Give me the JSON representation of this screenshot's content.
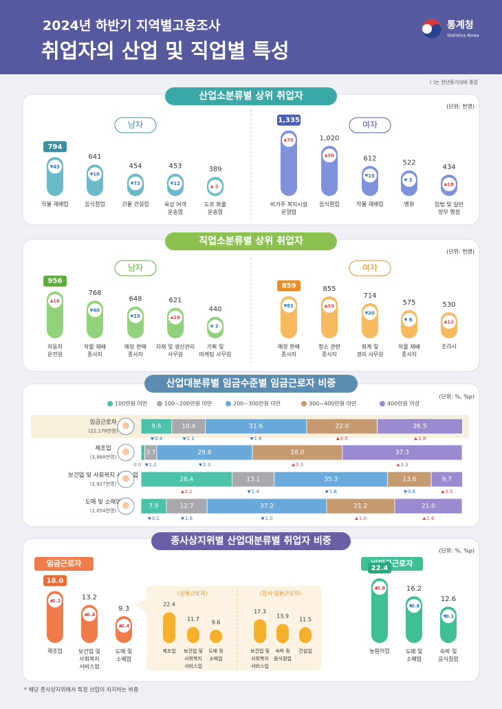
{
  "header": {
    "subtitle": "2024년 하반기 지역별고용조사",
    "title": "취업자의 산업 및 직업별 특성",
    "logo": "통계청",
    "logo_en": "Statistics Korea",
    "note": "( )는 전년동기대비 증감"
  },
  "chart_data": [
    {
      "type": "pill-bar",
      "title": "산업소분류별 상위 취업자",
      "unit": "(단위: 천명)",
      "ylim": [
        0,
        1400
      ],
      "series": [
        {
          "name": "남자",
          "color": "#6cb9c9",
          "badge_color": "#3e8ea3",
          "categories": [
            "작물 재배업",
            "음식점업",
            "건물 건설업",
            "육상 여객\n운송업",
            "도로 화물\n운송업"
          ],
          "values": [
            794,
            641,
            454,
            453,
            389
          ],
          "change": [
            45,
            10,
            73,
            12,
            2
          ],
          "change_direction": [
            "down",
            "down",
            "down",
            "down",
            "up"
          ]
        },
        {
          "name": "여자",
          "color": "#8091dc",
          "badge_color": "#4b5dba",
          "categories": [
            "비거주 복지시설\n운영업",
            "음식점업",
            "작물 재배업",
            "병원",
            "입법 및 일반\n정부 행정"
          ],
          "values": [
            1335,
            1020,
            612,
            522,
            434
          ],
          "value_labels": [
            "1,335",
            "1,020",
            "612",
            "522",
            "434"
          ],
          "change": [
            70,
            30,
            15,
            3,
            18
          ],
          "change_direction": [
            "up",
            "up",
            "down",
            "down",
            "up"
          ]
        }
      ]
    },
    {
      "type": "pill-bar",
      "title": "직업소분류별 상위 취업자",
      "unit": "(단위: 천명)",
      "ylim": [
        0,
        1400
      ],
      "series": [
        {
          "name": "남자",
          "color": "#92d27c",
          "badge_color": "#5fae3c",
          "categories": [
            "자동차\n운전원",
            "작물 재배\n종사자",
            "매장 판매\n종사자",
            "자재 및 생산관리\n사무원",
            "기획 및\n마케팅 사무원"
          ],
          "values": [
            956,
            768,
            648,
            621,
            440
          ],
          "change": [
            16,
            40,
            19,
            18,
            7
          ],
          "change_direction": [
            "up",
            "down",
            "down",
            "up",
            "down"
          ]
        },
        {
          "name": "여자",
          "color": "#f6b95e",
          "badge_color": "#e68d25",
          "categories": [
            "매장 판매\n종사자",
            "청소 관련\n종사자",
            "회계 및\n경리 사무원",
            "작물 재배\n종사자",
            "조리사"
          ],
          "values": [
            859,
            855,
            714,
            575,
            530
          ],
          "change": [
            81,
            39,
            20,
            8,
            12
          ],
          "change_direction": [
            "down",
            "up",
            "down",
            "down",
            "up"
          ]
        }
      ]
    },
    {
      "type": "stacked-bar-h",
      "title": "산업대분류별 임금수준별 임금근로자 비중",
      "unit": "(단위: %, %p)",
      "xlim": [
        0,
        100
      ],
      "categories": [
        "임금근로자",
        "제조업",
        "보건업 및 사회복지 서비스업",
        "도매 및 소매업"
      ],
      "category_notes": [
        "(22,178천명)",
        "(3,988천명)",
        "(2,927천명)",
        "(2,054천명)"
      ],
      "series": [
        {
          "name": "100만원 미만",
          "color": "#4cc3a8",
          "values": [
            9.6,
            1.2,
            28.4,
            7.9
          ],
          "change": [
            0.4,
            0.0,
            2.1,
            0.1
          ],
          "change_labels": [
            "0.4",
            "0.0",
            "2.1",
            "0.1"
          ],
          "change_direction": [
            "down",
            "none",
            "up",
            "down"
          ]
        },
        {
          "name": "100~200만원 미만",
          "color": "#a7a9ad",
          "values": [
            10.4,
            3.7,
            13.1,
            12.7
          ],
          "change": [
            1.1,
            1.2,
            1.4,
            1.6
          ],
          "change_direction": [
            "down",
            "down",
            "down",
            "down"
          ]
        },
        {
          "name": "200~300만원 미만",
          "color": "#6aa9db",
          "values": [
            31.6,
            29.8,
            35.3,
            37.2
          ],
          "change": [
            1.6,
            2.3,
            1.8,
            1.0
          ],
          "change_labels": [
            "1.6",
            "2.3",
            "1.8",
            "1.0"
          ],
          "change_direction": [
            "down",
            "down",
            "down",
            "down"
          ]
        },
        {
          "name": "300~400만원 미만",
          "color": "#c59a70",
          "values": [
            22.0,
            28.0,
            13.6,
            21.2
          ],
          "value_labels": [
            "22.0",
            "28.0",
            "13.6",
            "21.2"
          ],
          "change": [
            0.5,
            0.3,
            0.8,
            1.0
          ],
          "change_labels": [
            "0.5",
            "0.3",
            "0.8",
            "1.0"
          ],
          "change_direction": [
            "up",
            "up",
            "down",
            "up"
          ]
        },
        {
          "name": "400만원 이상",
          "color": "#9b8ad0",
          "values": [
            26.5,
            37.3,
            9.7,
            21.0
          ],
          "value_labels": [
            "26.5",
            "37.3",
            "9.7",
            "21.0"
          ],
          "change": [
            1.8,
            3.3,
            0.5,
            1.6
          ],
          "change_direction": [
            "up",
            "up",
            "up",
            "up"
          ]
        }
      ]
    },
    {
      "type": "pill-bar",
      "title": "종사상지위별 산업대분류별 취업자 비중",
      "unit": "(단위: %, %p)",
      "ylim": [
        0,
        25
      ],
      "series": [
        {
          "name": "임금근로자",
          "color": "#f07c4c",
          "badge_color": "#ea6a34",
          "categories": [
            "제조업",
            "보건업 및\n사회복지\n서비스업",
            "도매 및\n소매업"
          ],
          "values": [
            18.0,
            13.2,
            9.3
          ],
          "value_labels": [
            "18.0",
            "13.2",
            "9.3"
          ],
          "change": [
            0.2,
            0.4,
            0.4
          ],
          "change_direction": [
            "up",
            "up",
            "up"
          ]
        },
        {
          "name": "〈상용근로자〉",
          "color": "#f5b12c",
          "categories": [
            "제조업",
            "보건업 및\n사회복지\n서비스업",
            "도매 및\n소매업"
          ],
          "values": [
            22.4,
            11.7,
            9.6
          ]
        },
        {
          "name": "〈임시·일용근로자〉",
          "color": "#f5b12c",
          "categories": [
            "보건업 및\n사회복지\n서비스업",
            "숙박 및\n음식점업",
            "건설업"
          ],
          "values": [
            17.3,
            13.9,
            11.5
          ]
        },
        {
          "name": "비임금근로자",
          "color": "#3fbf96",
          "badge_color": "#2aa880",
          "categories": [
            "농림어업",
            "도매 및\n소매업",
            "숙박 및\n음식점업"
          ],
          "values": [
            22.4,
            16.2,
            12.6
          ],
          "change": [
            0.8,
            0.8,
            0.1
          ],
          "change_direction": [
            "up",
            "down",
            "down"
          ]
        }
      ]
    }
  ],
  "footnote": "* 해당 종사상지위에서 특정 산업이 차지하는 비중"
}
